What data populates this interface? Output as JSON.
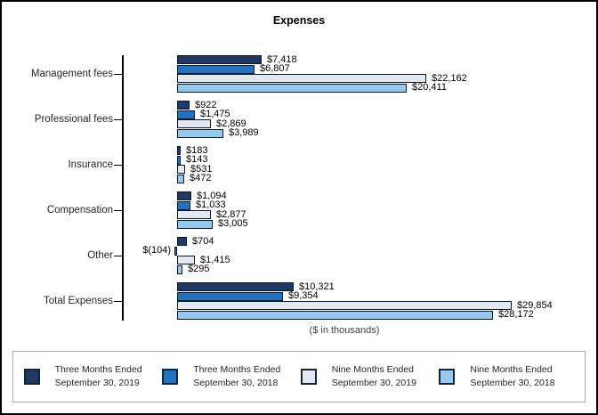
{
  "title": "Expenses",
  "footnote": "($ in thousands)",
  "chart_data": {
    "type": "bar",
    "orientation": "horizontal",
    "title": "Expenses",
    "xlabel": "($ in thousands)",
    "ylabel": "",
    "axis": {
      "min": -5000,
      "max": 30000,
      "gridlines": false,
      "value_axis_labels_hidden": true
    },
    "legend_position": "bottom",
    "categories": [
      "Management fees",
      "Professional fees",
      "Insurance",
      "Compensation",
      "Other",
      "Total Expenses"
    ],
    "series": [
      {
        "name": "Three Months Ended September 30, 2019",
        "color": "#1F3864",
        "values": [
          7418,
          922,
          183,
          1094,
          704,
          10321
        ],
        "labels": [
          "$7,418",
          "$922",
          "$183",
          "$1,094",
          "$704",
          "$10,321"
        ]
      },
      {
        "name": "Three Months Ended September 30, 2018",
        "color": "#2173C2",
        "values": [
          6807,
          1475,
          143,
          1033,
          -104,
          9354
        ],
        "labels": [
          "$6,807",
          "$1,475",
          "$143",
          "$1,033",
          "$(104)",
          "$9,354"
        ]
      },
      {
        "name": "Nine Months Ended September 30, 2019",
        "color": "#E1E8F0",
        "values": [
          22162,
          2869,
          531,
          2877,
          1415,
          29854
        ],
        "labels": [
          "$22,162",
          "$2,869",
          "$531",
          "$2,877",
          "$1,415",
          "$29,854"
        ]
      },
      {
        "name": "Nine Months Ended September 30, 2018",
        "color": "#96C9F0",
        "values": [
          20411,
          3989,
          472,
          3005,
          295,
          28172
        ],
        "labels": [
          "$20,411",
          "$3,989",
          "$472",
          "$3,005",
          "$295",
          "$28,172"
        ]
      }
    ]
  },
  "legend": [
    {
      "line1": "Three Months Ended",
      "line2": "September 30, 2019",
      "color": "#1F3864"
    },
    {
      "line1": "Three Months Ended",
      "line2": "September 30, 2018",
      "color": "#2173C2"
    },
    {
      "line1": "Nine Months Ended",
      "line2": "September 30, 2019",
      "color": "#E1E8F0"
    },
    {
      "line1": "Nine Months Ended",
      "line2": "September 30, 2018",
      "color": "#96C9F0"
    }
  ]
}
